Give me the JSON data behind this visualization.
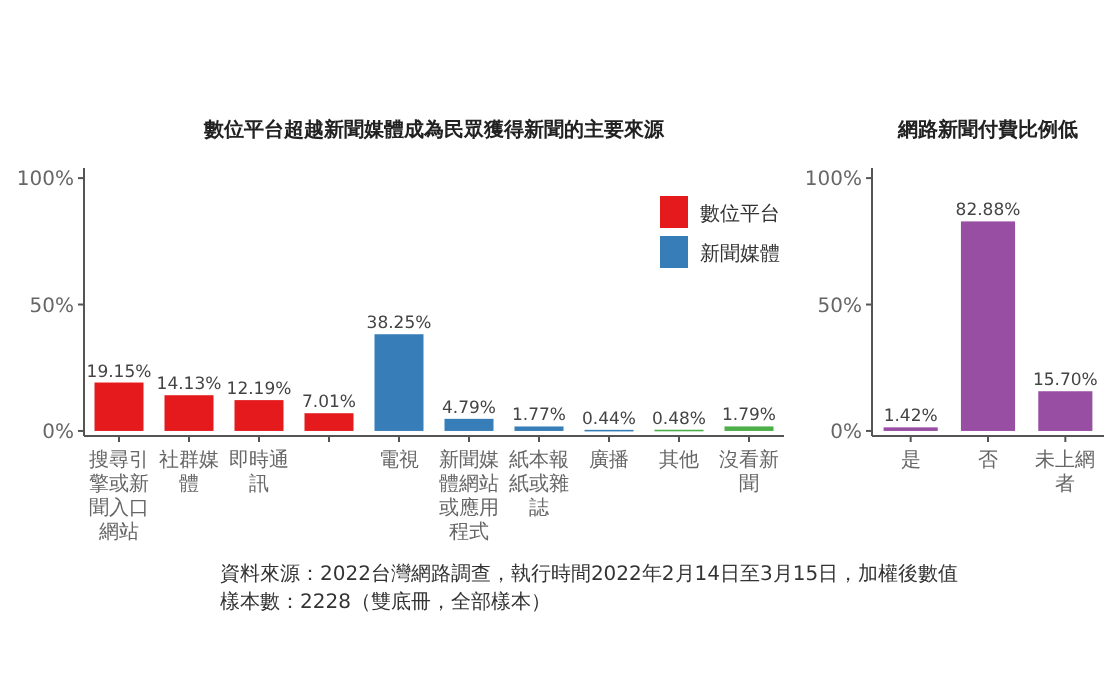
{
  "chart_data": [
    {
      "type": "bar",
      "title": "數位平台超越新聞媒體成為民眾獲得新聞的主要來源",
      "categories": [
        "搜尋引擎或新聞入口網站",
        "社群媒體",
        "即時通訊",
        null,
        "電視",
        "新聞媒體網站或應用程式",
        "紙本報紙或雜誌",
        "廣播",
        "其他",
        "沒看新聞"
      ],
      "series": [
        {
          "name": "數位平台",
          "color": "#e41a1c",
          "values": [
            19.15,
            14.13,
            12.19,
            7.01,
            null,
            null,
            null,
            null,
            null,
            null
          ],
          "value_labels": [
            "19.15%",
            "14.13%",
            "12.19%",
            "7.01%",
            null,
            null,
            null,
            null,
            null,
            null
          ]
        },
        {
          "name": "新聞媒體",
          "color": "#377eb8",
          "values": [
            null,
            null,
            null,
            null,
            38.25,
            4.79,
            1.77,
            0.44,
            null,
            null
          ],
          "value_labels": [
            null,
            null,
            null,
            null,
            "38.25%",
            "4.79%",
            "1.77%",
            "0.44%",
            null,
            null
          ]
        },
        {
          "color": "#4daf4a",
          "values": [
            null,
            null,
            null,
            null,
            null,
            null,
            null,
            null,
            0.48,
            1.79
          ],
          "value_labels": [
            null,
            null,
            null,
            null,
            null,
            null,
            null,
            null,
            "0.48%",
            "1.79%"
          ]
        }
      ],
      "ylim": [
        -2,
        104
      ],
      "yticks": [
        {
          "value": 0,
          "label": "0%"
        },
        {
          "value": 50,
          "label": "50%"
        },
        {
          "value": 100,
          "label": "100%"
        }
      ],
      "legend": "top right",
      "annotations": [
        "資料來源：2022台灣網路調查，執行時間2022年2月14日至3月15日，加權後數值",
        "樣本數：2228（雙底冊，全部樣本）"
      ]
    },
    {
      "type": "bar",
      "title": "網路新聞付費比例低",
      "categories": [
        "是",
        "否",
        "未上網者"
      ],
      "series": [
        {
          "color": "#984ea3",
          "values": [
            1.42,
            82.88,
            15.7
          ],
          "value_labels": [
            "1.42%",
            "82.88%",
            "15.70%"
          ]
        }
      ],
      "ylim": [
        -2,
        104
      ],
      "yticks": [
        {
          "value": 0,
          "label": "0%"
        },
        {
          "value": 50,
          "label": "50%"
        },
        {
          "value": 100,
          "label": "100%"
        }
      ]
    }
  ]
}
